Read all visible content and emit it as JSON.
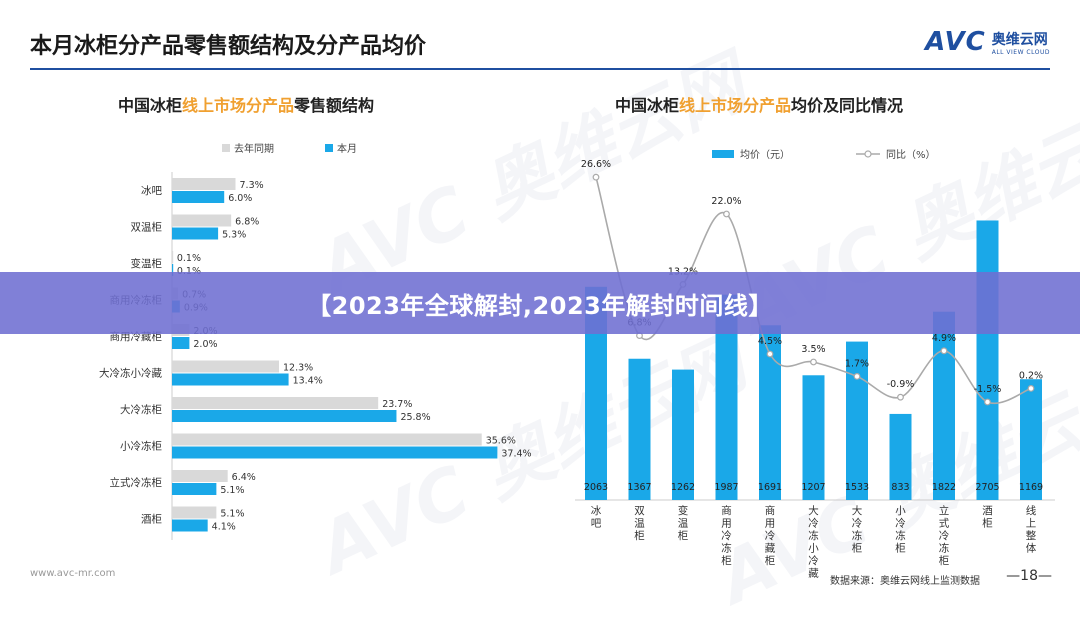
{
  "header": {
    "title": "本月冰柜分产品零售额结构及分产品均价",
    "logo_mark": "AVC",
    "logo_cn": "奥维云网",
    "logo_en": "ALL VIEW CLOUD"
  },
  "left_title": {
    "pre": "中国冰柜",
    "hl": "线上市场分产品",
    "post": "零售额结构"
  },
  "right_title": {
    "pre": "中国冰柜",
    "hl": "线上市场分产品",
    "post": "均价及同比情况"
  },
  "banner": "【2023年全球解封,2023年解封时间线】",
  "footer": {
    "url": "www.avc-mr.com",
    "source": "数据来源：奥维云网线上监测数据",
    "page": "—18—"
  },
  "watermark": "AVC 奥维云网",
  "colors": {
    "current": "#1aa8e8",
    "prior": "#d9d9d9",
    "line": "#aaaaaa",
    "accent": "#1f4fa0",
    "highlight": "#f0a030"
  },
  "chart_data": [
    {
      "type": "bar",
      "orientation": "horizontal",
      "categories": [
        "冰吧",
        "双温柜",
        "变温柜",
        "商用冷冻柜",
        "商用冷藏柜",
        "大冷冻小冷藏",
        "大冷冻柜",
        "小冷冻柜",
        "立式冷冻柜",
        "酒柜"
      ],
      "series": [
        {
          "name": "去年同期",
          "values": [
            7.3,
            6.8,
            0.1,
            0.7,
            2.0,
            12.3,
            23.7,
            35.6,
            6.4,
            5.1
          ],
          "labels": [
            "7.3%",
            "6.8%",
            "0.1%",
            "0.7%",
            "2.0%",
            "12.3%",
            "23.7%",
            "35.6%",
            "6.4%",
            "5.1%"
          ]
        },
        {
          "name": "本月",
          "values": [
            6.0,
            5.3,
            0.1,
            0.9,
            2.0,
            13.4,
            25.8,
            37.4,
            5.1,
            4.1
          ],
          "labels": [
            "6.0%",
            "5.3%",
            "0.1%",
            "0.9%",
            "2.0%",
            "13.4%",
            "25.8%",
            "37.4%",
            "5.1%",
            "4.1%"
          ]
        }
      ],
      "legend_position": "top-left",
      "xlim": [
        0,
        40
      ]
    },
    {
      "type": "bar+line",
      "categories": [
        "冰吧",
        "双温柜",
        "变温柜",
        "商用冷冻柜",
        "商用冷藏柜",
        "大冷冻小冷藏",
        "大冷冻柜",
        "小冷冻柜",
        "立式冷冻柜",
        "酒柜",
        "线上整体"
      ],
      "bar_series": {
        "name": "均价（元）",
        "values": [
          2063,
          1367,
          1262,
          1987,
          1691,
          1207,
          1533,
          833,
          1822,
          2705,
          1169
        ],
        "labels": [
          "2063",
          "1367",
          "1262",
          "1987",
          "1691",
          "1207",
          "1533",
          "833",
          "1822",
          "2705",
          "1169"
        ]
      },
      "line_series": {
        "name": "同比（%）",
        "values": [
          26.6,
          6.8,
          13.2,
          22.0,
          4.5,
          3.5,
          1.7,
          -0.9,
          4.9,
          -1.5,
          0.2
        ],
        "labels": [
          "26.6%",
          "6.8%",
          "13.2%",
          "22.0%",
          "4.5%",
          "3.5%",
          "1.7%",
          "-0.9%",
          "4.9%",
          "-1.5%",
          "0.2%"
        ]
      },
      "ylim_bar": [
        0,
        3000
      ],
      "ylim_line": [
        -10,
        30
      ],
      "legend_position": "top-center"
    }
  ]
}
